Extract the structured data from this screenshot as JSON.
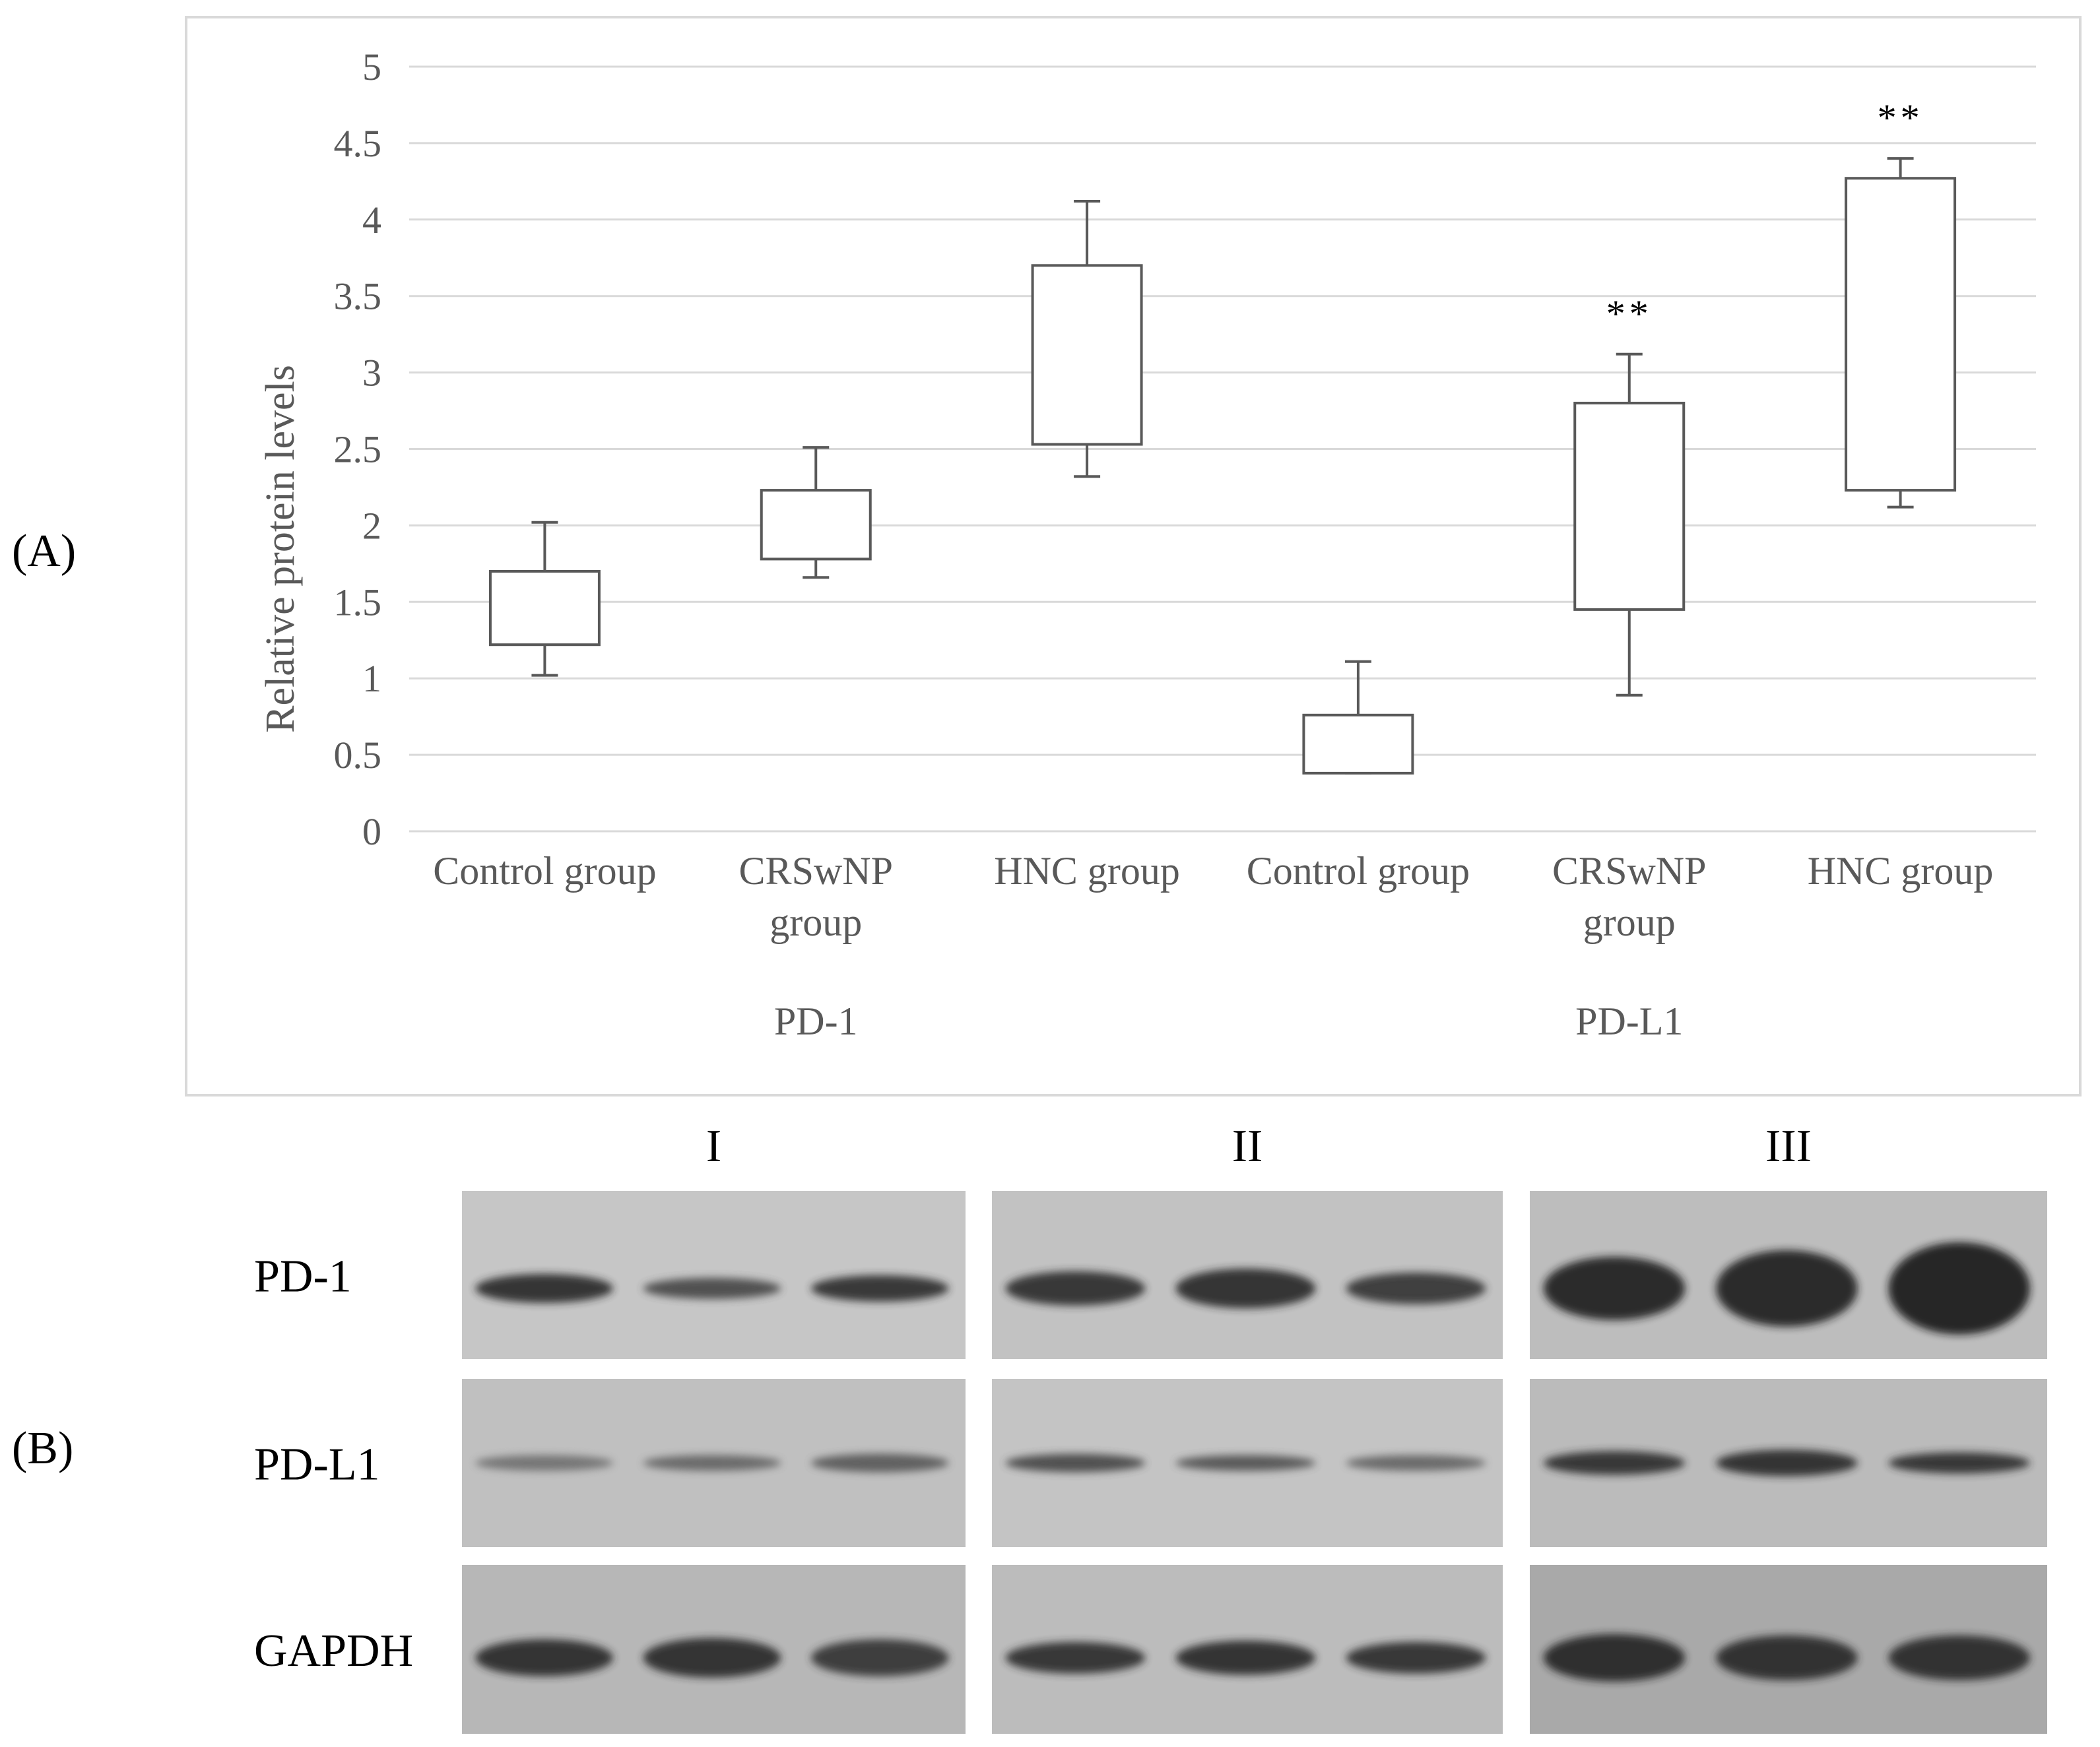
{
  "panel_labels": {
    "a": "(A)",
    "b": "(B)"
  },
  "colors": {
    "grid": "#d9d9d9",
    "tick_text": "#595959",
    "box_stroke": "#595959",
    "frame": "#d9d9d9"
  },
  "chart_data": {
    "type": "box",
    "title": "",
    "xlabel": "",
    "ylabel": "Relative protein levels",
    "ylim": [
      0,
      5
    ],
    "yticks": [
      "0",
      "0.5",
      "1",
      "1.5",
      "2",
      "2.5",
      "3",
      "3.5",
      "4",
      "4.5",
      "5"
    ],
    "grid": true,
    "category_groups": [
      "PD-1",
      "PD-L1"
    ],
    "categories": [
      {
        "label": [
          "Control group"
        ],
        "group": "PD-1"
      },
      {
        "label": [
          "CRSwNP",
          "group"
        ],
        "group": "PD-1"
      },
      {
        "label": [
          "HNC group"
        ],
        "group": "PD-1"
      },
      {
        "label": [
          "Control group"
        ],
        "group": "PD-L1"
      },
      {
        "label": [
          "CRSwNP",
          "group"
        ],
        "group": "PD-L1"
      },
      {
        "label": [
          "HNC group"
        ],
        "group": "PD-L1"
      }
    ],
    "boxes": [
      {
        "whisker_low": 1.02,
        "q1": 1.22,
        "q3": 1.7,
        "whisker_high": 2.02,
        "annotation": ""
      },
      {
        "whisker_low": 1.66,
        "q1": 1.78,
        "q3": 2.23,
        "whisker_high": 2.51,
        "annotation": ""
      },
      {
        "whisker_low": 2.32,
        "q1": 2.53,
        "q3": 3.7,
        "whisker_high": 4.12,
        "annotation": ""
      },
      {
        "whisker_low": 0.38,
        "q1": 0.38,
        "q3": 0.76,
        "whisker_high": 1.11,
        "annotation": ""
      },
      {
        "whisker_low": 0.89,
        "q1": 1.45,
        "q3": 2.8,
        "whisker_high": 3.12,
        "annotation": "**"
      },
      {
        "whisker_low": 2.12,
        "q1": 2.23,
        "q3": 4.27,
        "whisker_high": 4.4,
        "annotation": "**"
      }
    ]
  },
  "blot": {
    "columns": [
      "I",
      "II",
      "III"
    ],
    "rows": [
      "PD-1",
      "PD-L1",
      "GAPDH"
    ]
  }
}
